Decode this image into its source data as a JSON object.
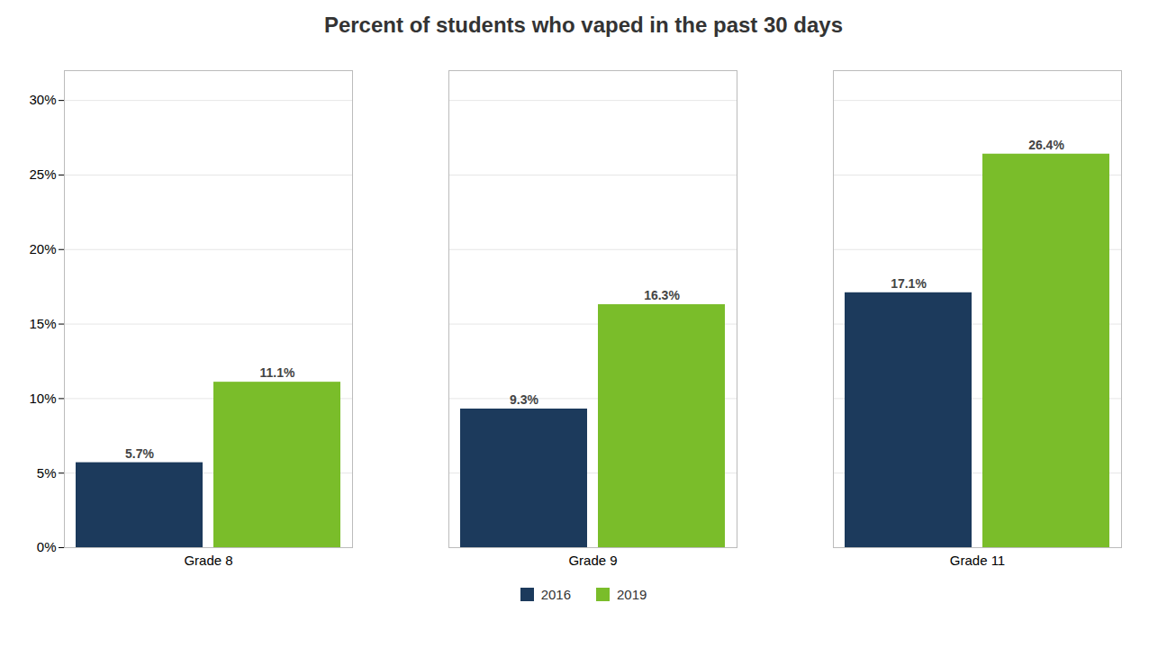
{
  "chart_data": {
    "type": "bar",
    "title": "Percent of students who vaped in the past 30 days",
    "categories": [
      "Grade 8",
      "Grade 9",
      "Grade 11"
    ],
    "series": [
      {
        "name": "2016",
        "color": "#1C3A5C",
        "values": [
          5.7,
          9.3,
          17.1
        ],
        "value_labels": [
          "5.7%",
          "9.3%",
          "17.1%"
        ]
      },
      {
        "name": "2019",
        "color": "#7ABD2A",
        "values": [
          11.1,
          16.3,
          26.4
        ],
        "value_labels": [
          "11.1%",
          "16.3%",
          "26.4%"
        ]
      }
    ],
    "ylim": [
      0,
      32
    ],
    "yticks": [
      {
        "value": 0,
        "label": "0%"
      },
      {
        "value": 5,
        "label": "5%"
      },
      {
        "value": 10,
        "label": "10%"
      },
      {
        "value": 15,
        "label": "15%"
      },
      {
        "value": 20,
        "label": "20%"
      },
      {
        "value": 25,
        "label": "25%"
      },
      {
        "value": 30,
        "label": "30%"
      }
    ],
    "grid": true,
    "legend": "bottom",
    "data_labels": true
  }
}
